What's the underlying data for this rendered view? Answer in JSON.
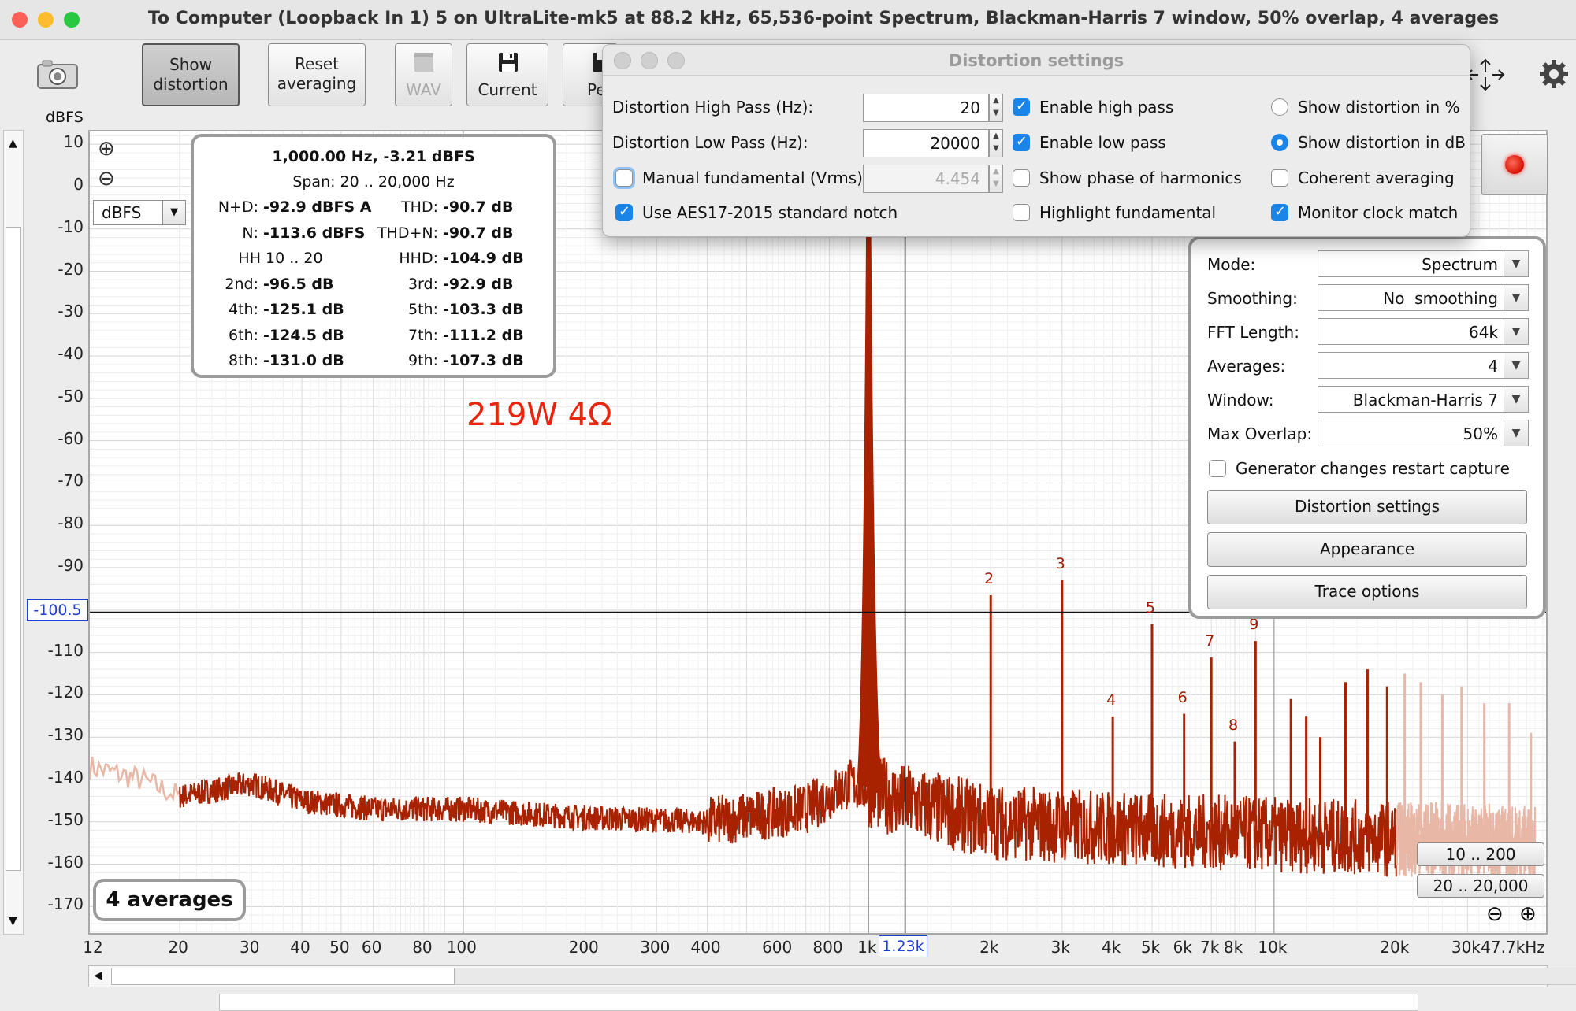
{
  "window": {
    "title": "To Computer (Loopback In 1) 5 on UltraLite-mk5 at 88.2 kHz, 65,536-point Spectrum, Blackman-Harris 7 window, 50% overlap, 4 averages",
    "light_colors": [
      "#fe5f57",
      "#febc2e",
      "#28c840"
    ]
  },
  "toolbar": {
    "show_distortion": "Show distortion",
    "reset_averaging": "Reset averaging",
    "wav": "WAV",
    "current": "Current",
    "truncated_button": "Pe"
  },
  "plot": {
    "y_unit": "dBFS",
    "y_ticks": [
      "10",
      "0",
      "-10",
      "-20",
      "-30",
      "-40",
      "-50",
      "-60",
      "-70",
      "-80",
      "-90",
      "-110",
      "-120",
      "-130",
      "-140",
      "-150",
      "-160",
      "-170"
    ],
    "cursor_y_value": "-100.5",
    "cursor_x_value": "1.23k",
    "x_ticks": [
      "12",
      "20",
      "30",
      "40",
      "50",
      "60",
      "80",
      "100",
      "200",
      "300",
      "400",
      "600",
      "800",
      "1k",
      "2k",
      "3k",
      "4k",
      "5k",
      "6k",
      "7k",
      "8k",
      "10k",
      "20k",
      "30k",
      "47.7kHz"
    ],
    "unit_selector": "dBFS",
    "annotation": "219W 4Ω",
    "averages_label": "4 averages",
    "harmonic_labels": [
      "2",
      "3",
      "4",
      "5",
      "6",
      "7",
      "8",
      "9"
    ],
    "range_buttons": [
      "10 .. 200",
      "20 .. 20,000"
    ],
    "trace_color": "#a82200",
    "annotation_color": "#e8260f"
  },
  "info_box": {
    "header": "1,000.00 Hz, -3.21 dBFS",
    "span": "Span: 20 .. 20,000 Hz",
    "rows": [
      {
        "l1": "N+D:",
        "v1": "-92.9 dBFS A",
        "l2": "THD:",
        "v2": "-90.7 dB"
      },
      {
        "l1": "N:",
        "v1": "-113.6 dBFS",
        "l2": "THD+N:",
        "v2": "-90.7 dB"
      },
      {
        "l1": "HH 10 .. 20",
        "v1": "",
        "l2": "HHD:",
        "v2": "-104.9 dB"
      },
      {
        "l1": "2nd:",
        "v1": "-96.5 dB",
        "l2": "3rd:",
        "v2": "-92.9 dB"
      },
      {
        "l1": "4th:",
        "v1": "-125.1 dB",
        "l2": "5th:",
        "v2": "-103.3 dB"
      },
      {
        "l1": "6th:",
        "v1": "-124.5 dB",
        "l2": "7th:",
        "v2": "-111.2 dB"
      },
      {
        "l1": "8th:",
        "v1": "-131.0 dB",
        "l2": "9th:",
        "v2": "-107.3 dB"
      }
    ]
  },
  "distortion_dialog": {
    "title": "Distortion settings",
    "high_pass_label": "Distortion High Pass (Hz):",
    "high_pass_value": "20",
    "low_pass_label": "Distortion Low Pass (Hz):",
    "low_pass_value": "20000",
    "manual_fundamental_label": "Manual fundamental (Vrms)",
    "manual_fundamental_value": "4.454",
    "aes17_label": "Use AES17-2015 standard notch",
    "enable_high_pass": "Enable high pass",
    "enable_low_pass": "Enable low pass",
    "show_phase": "Show phase of harmonics",
    "highlight_fundamental": "Highlight fundamental",
    "show_percent": "Show distortion in %",
    "show_db": "Show distortion in dB",
    "coherent_averaging": "Coherent averaging",
    "monitor_clock": "Monitor clock match"
  },
  "settings_panel": {
    "mode_label": "Mode:",
    "mode_value": "Spectrum",
    "smoothing_label": "Smoothing:",
    "smoothing_value": "No  smoothing",
    "fft_label": "FFT Length:",
    "fft_value": "64k",
    "averages_label": "Averages:",
    "averages_value": "4",
    "window_label": "Window:",
    "window_value": "Blackman-Harris 7",
    "overlap_label": "Max Overlap:",
    "overlap_value": "50%",
    "generator_restart": "Generator changes restart capture",
    "distortion_settings_btn": "Distortion settings",
    "appearance_btn": "Appearance",
    "trace_options_btn": "Trace options"
  },
  "chart_data": {
    "type": "line",
    "xscale": "log",
    "xlim": [
      12,
      47700
    ],
    "ylim": [
      -177,
      13
    ],
    "ylabel": "dBFS",
    "fundamental": {
      "x": 1000,
      "y": -3.21
    },
    "harmonics": [
      {
        "label": "2",
        "x": 2000,
        "y": -96.5
      },
      {
        "label": "3",
        "x": 3000,
        "y": -92.9
      },
      {
        "label": "4",
        "x": 4000,
        "y": -125.1
      },
      {
        "label": "5",
        "x": 5000,
        "y": -103.3
      },
      {
        "label": "6",
        "x": 6000,
        "y": -124.5
      },
      {
        "label": "7",
        "x": 7000,
        "y": -111.2
      },
      {
        "label": "8",
        "x": 8000,
        "y": -131.0
      },
      {
        "label": "9",
        "x": 9000,
        "y": -107.3
      }
    ],
    "noise_floor": [
      [
        12,
        -137
      ],
      [
        16,
        -140
      ],
      [
        20,
        -144
      ],
      [
        30,
        -141
      ],
      [
        40,
        -145
      ],
      [
        60,
        -147
      ],
      [
        100,
        -147
      ],
      [
        200,
        -149
      ],
      [
        400,
        -150
      ],
      [
        700,
        -147
      ],
      [
        900,
        -141
      ],
      [
        1200,
        -145
      ],
      [
        2000,
        -150
      ],
      [
        5000,
        -152
      ],
      [
        10000,
        -153
      ],
      [
        20000,
        -154
      ],
      [
        47700,
        -155
      ]
    ],
    "high_spurs": [
      {
        "x": 11000,
        "y": -121
      },
      {
        "x": 12000,
        "y": -125
      },
      {
        "x": 13000,
        "y": -130
      },
      {
        "x": 15000,
        "y": -117
      },
      {
        "x": 17000,
        "y": -114
      },
      {
        "x": 19000,
        "y": -118
      },
      {
        "x": 21000,
        "y": -115
      },
      {
        "x": 23000,
        "y": -117
      },
      {
        "x": 26000,
        "y": -120
      },
      {
        "x": 29000,
        "y": -118
      },
      {
        "x": 33000,
        "y": -122
      },
      {
        "x": 38000,
        "y": -122
      },
      {
        "x": 43000,
        "y": -129
      }
    ],
    "cursor": {
      "x": 1230,
      "y": -100.5
    }
  }
}
